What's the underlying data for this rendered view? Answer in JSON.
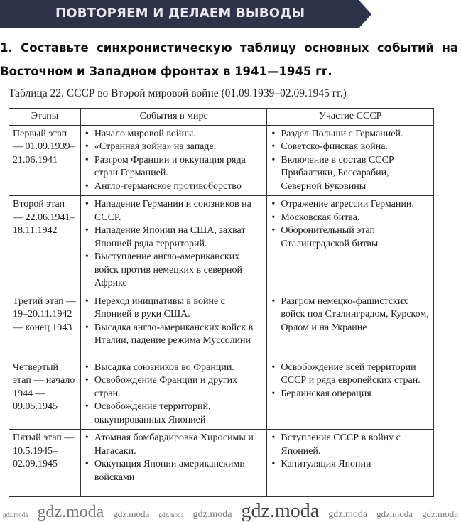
{
  "banner": {
    "title": "ПОВТОРЯЕМ И ДЕЛАЕМ ВЫВОДЫ"
  },
  "task": {
    "line1": "1. Составьте синхронистическую таблицу основных событий на",
    "line2": "Восточном и Западном фронтах в 1941—1945 гг."
  },
  "caption": "Таблица 22. СССР во Второй мировой войне (01.09.1939–02.09.1945 гг.)",
  "table": {
    "headers": [
      "Этапы",
      "События в мире",
      "Участие СССР"
    ],
    "rows": [
      {
        "stage": "Первый этап — 01.09.1939–21.06.1941",
        "world": [
          "Начало мировой войны.",
          "«Странная война» на западе.",
          "Разгром Франции и оккупация ряда стран Германией.",
          "Англо-германское противоборство"
        ],
        "ussr": [
          "Раздел Польши с Германией.",
          "Советско-финская война.",
          "Включение в состав СССР Прибалтики, Бессарабии, Северной Буковины"
        ]
      },
      {
        "stage": "Второй этап — 22.06.1941–18.11.1942",
        "world": [
          "Нападение Германии и союзников на СССР.",
          "Нападение Японии на США, захват Японией ряда территорий.",
          "Выступление англо-американских войск против немецких в северной Африке"
        ],
        "ussr": [
          "Отражение агрессии Германии.",
          "Московская битва.",
          "Оборонительный этап Сталинградской битвы"
        ]
      },
      {
        "stage": "Третий этап — 19–20.11.1942 — конец 1943",
        "world": [
          "Переход инициативы в войне с Японией в руки США.",
          "Высадка англо-американских войск в Италии, падение режима Муссолини"
        ],
        "ussr": [
          "Разгром немецко-фашистских войск под Сталинградом, Курском, Орлом и на Украине"
        ]
      },
      {
        "stage": "Четвертый этап — начало 1944 — 09.05.1945",
        "world": [
          "Высадка союзников во Франции.",
          "Освобождение Франции и других стран.",
          "Освобождение территорий, оккупированных Японией"
        ],
        "ussr": [
          "Освобождение всей территории СССР и ряда европейских стран.",
          "Берлинская операция"
        ]
      },
      {
        "stage": "Пятый этап — 10.5.1945–02.09.1945",
        "world": [
          "Атомная бомбардировка Хиросимы и Нагасаки.",
          "Оккупация Японии американскими войсками"
        ],
        "ussr": [
          "Вступление СССР в войну с Японией.",
          "Капитуляция Японии"
        ]
      }
    ]
  },
  "watermark": "gdz.moda"
}
